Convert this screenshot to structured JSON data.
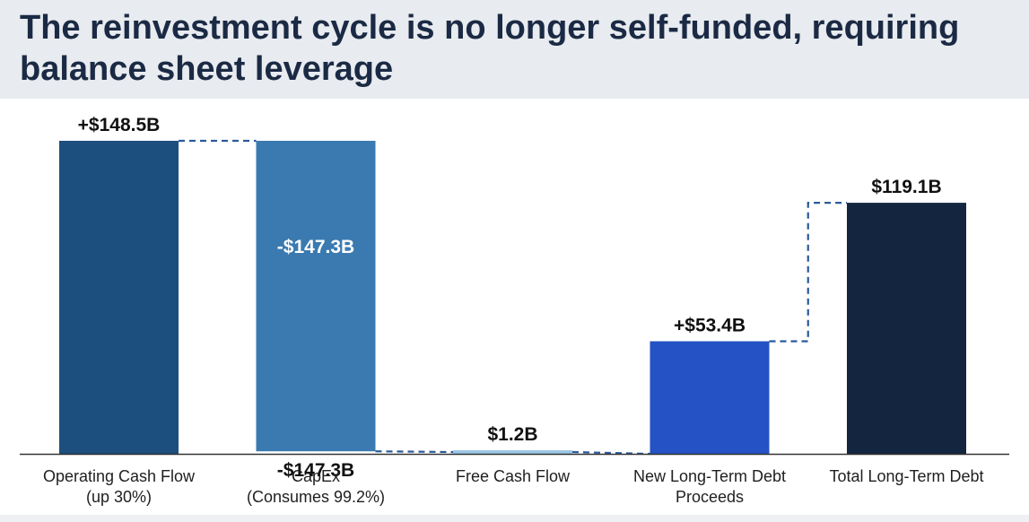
{
  "page": {
    "title": "The reinvestment cycle is no longer self-funded, requiring balance sheet leverage"
  },
  "chart_data": {
    "type": "waterfall",
    "title": "The reinvestment cycle is no longer self-funded, requiring balance sheet leverage",
    "unit": "$B",
    "ylim": [
      0,
      148.5
    ],
    "grid": false,
    "steps": [
      {
        "category_lines": [
          "Operating Cash Flow",
          "(up 30%)"
        ],
        "kind": "total",
        "start": 0,
        "end": 148.5,
        "value": 148.5,
        "labels": [
          {
            "text": "+$148.5B",
            "anchor": "top",
            "color": "#111111"
          }
        ],
        "color": "#1d4f7e"
      },
      {
        "category_lines": [
          "CapEx",
          "(Consumes 99.2%)"
        ],
        "kind": "delta",
        "start": 148.5,
        "end": 1.2,
        "value": -147.3,
        "labels": [
          {
            "text": "-$147.3B",
            "anchor": "middle",
            "color": "#ffffff"
          },
          {
            "text": "-$147.3B",
            "anchor": "below",
            "color": "#111111"
          }
        ],
        "color": "#3a7ab0"
      },
      {
        "category_lines": [
          "Free Cash Flow"
        ],
        "kind": "total",
        "start": 0,
        "end": 1.2,
        "value": 1.2,
        "labels": [
          {
            "text": "$1.2B",
            "anchor": "top",
            "color": "#111111"
          }
        ],
        "color": "#9dc7e6"
      },
      {
        "category_lines": [
          "New Long-Term Debt",
          "Proceeds"
        ],
        "kind": "delta",
        "start": 0,
        "end": 53.4,
        "value": 53.4,
        "labels": [
          {
            "text": "+$53.4B",
            "anchor": "top",
            "color": "#111111"
          }
        ],
        "color": "#2552c4"
      },
      {
        "category_lines": [
          "Total Long-Term Debt"
        ],
        "kind": "total",
        "start": 0,
        "end": 119.1,
        "value": 119.1,
        "labels": [
          {
            "text": "$119.1B",
            "anchor": "top",
            "color": "#111111"
          }
        ],
        "color": "#13253f"
      }
    ],
    "connector_color": "#2b5a9a"
  }
}
